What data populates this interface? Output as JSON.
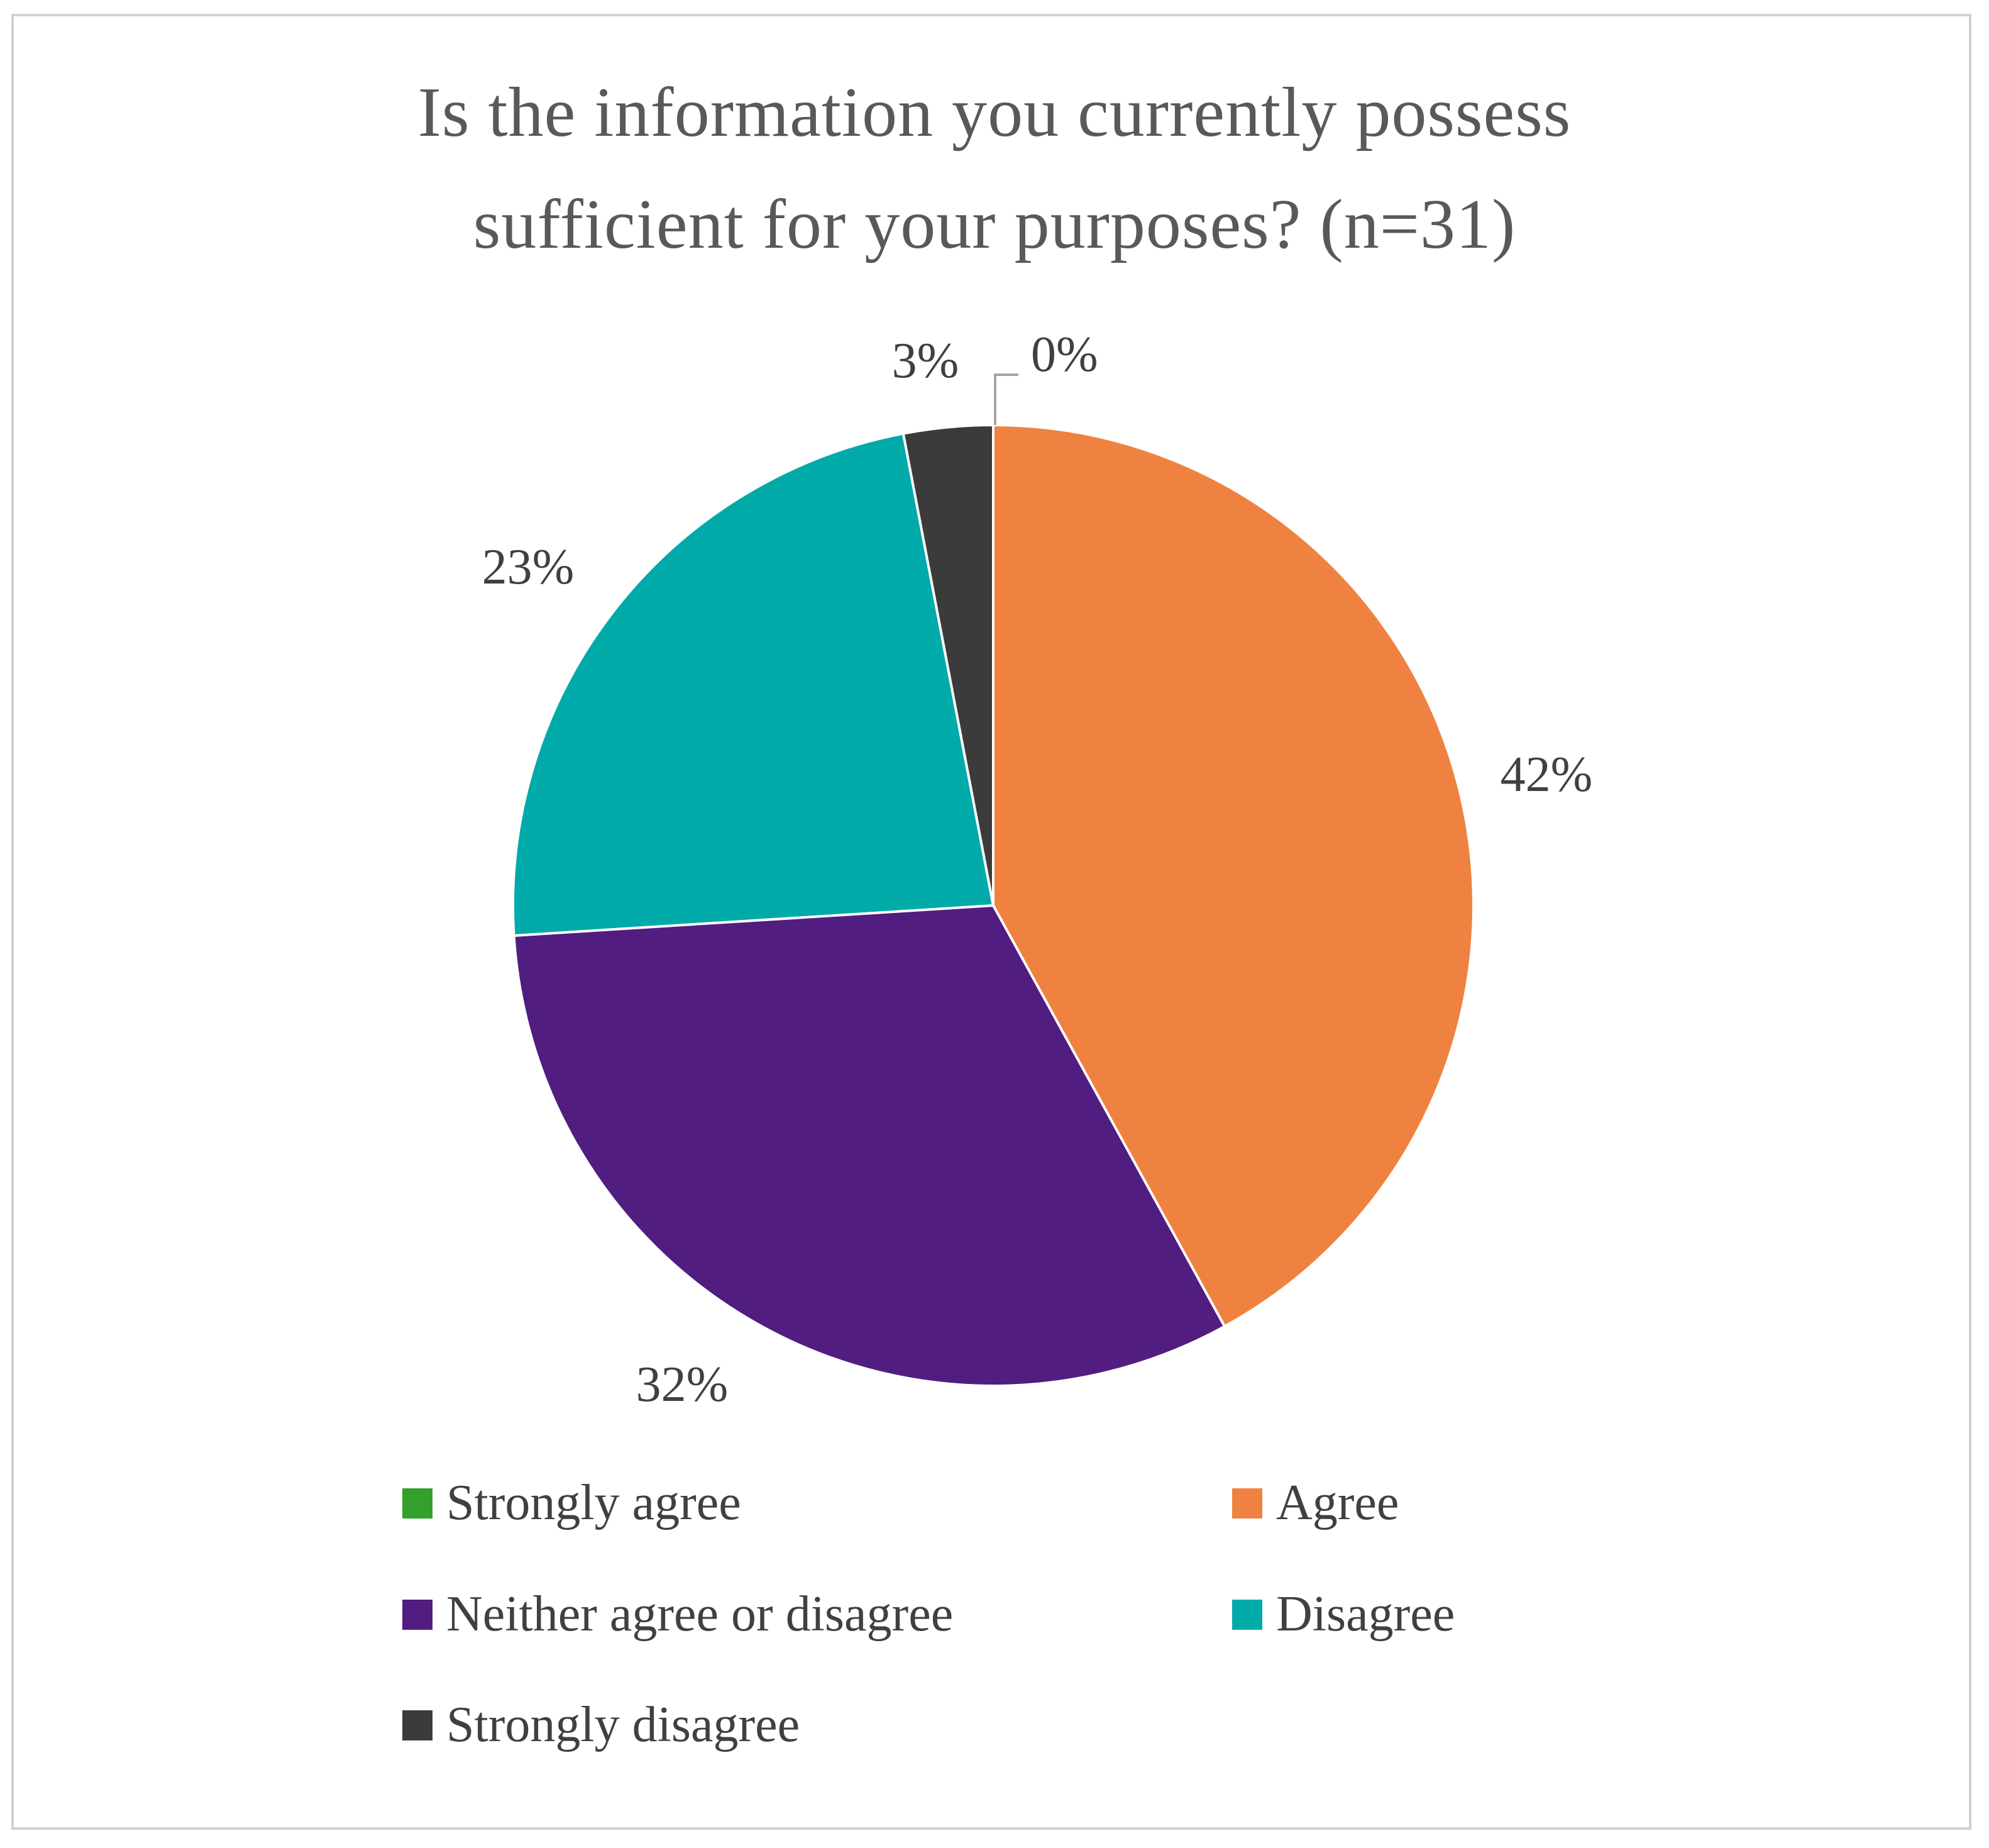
{
  "chart_data": {
    "type": "pie",
    "title_lines": [
      "Is the information you currently possess",
      "sufficient for your purposes? (n=31)"
    ],
    "slices": [
      {
        "name": "Strongly agree",
        "value": 0,
        "label": "0%",
        "color": "#33a02c"
      },
      {
        "name": "Agree",
        "value": 42,
        "label": "42%",
        "color": "#ef8240"
      },
      {
        "name": "Neither agree or disagree",
        "value": 32,
        "label": "32%",
        "color": "#511d80"
      },
      {
        "name": "Disagree",
        "value": 23,
        "label": "23%",
        "color": "#00aaa9"
      },
      {
        "name": "Strongly disagree",
        "value": 3,
        "label": "3%",
        "color": "#3b3b3b"
      }
    ],
    "legend_position": "bottom"
  }
}
